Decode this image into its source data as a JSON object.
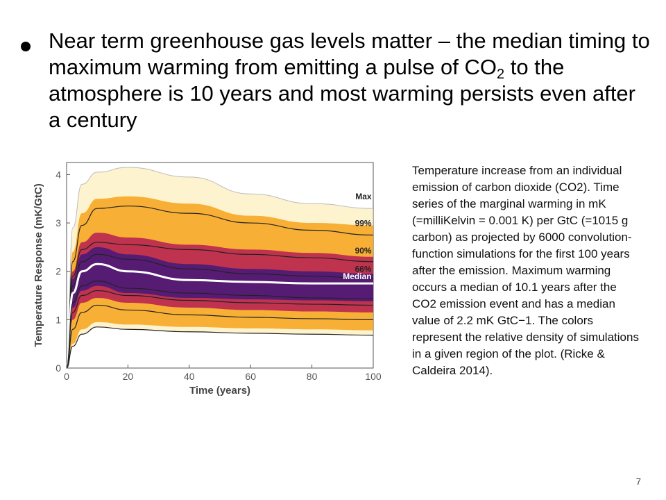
{
  "slide": {
    "bullet": {
      "part1": "Near term greenhouse gas levels matter – the median timing to maximum warming from emitting a pulse of CO",
      "subscript": "2",
      "part2": " to the atmosphere is 10 years and most warming persists even after a century"
    },
    "caption": "Temperature increase from an individual emission of carbon dioxide (CO2). Time series of the marginal warming in mK (=milliKelvin = 0.001 K) per GtC (=1015 g carbon) as projected by 6000 convolution-function simulations for the first 100 years after the emission. Maximum warming occurs a median of 10.1 years after the CO2 emission event and has a median value of 2.2 mK GtC−1. The colors represent the relative density of simulations in a given region of the plot. (Ricke & Caldeira 2014).",
    "page_number": "7"
  },
  "colors": {
    "density_low": "#fde9a8",
    "density_mid": "#f6a21a",
    "density_high": "#b51d52",
    "density_core": "#4a1a78",
    "median_line": "#ffffff",
    "percentile_line": "#222222"
  },
  "chart_data": {
    "type": "area",
    "xlabel": "Time (years)",
    "ylabel": "Temperature Response (mK/GtC)",
    "xlim": [
      0,
      100
    ],
    "ylim": [
      0,
      4.25
    ],
    "xticks": [
      0,
      20,
      40,
      60,
      80,
      100
    ],
    "yticks": [
      0,
      1,
      2,
      3,
      4
    ],
    "x": [
      0,
      2,
      5,
      10,
      20,
      40,
      60,
      80,
      100
    ],
    "series": [
      {
        "name": "Max",
        "values": [
          0,
          2.9,
          3.8,
          4.05,
          4.15,
          3.95,
          3.6,
          3.4,
          3.3
        ]
      },
      {
        "name": "99%",
        "values": [
          0,
          2.2,
          2.95,
          3.3,
          3.35,
          3.2,
          3.0,
          2.85,
          2.75
        ]
      },
      {
        "name": "90%",
        "values": [
          0,
          1.9,
          2.45,
          2.6,
          2.55,
          2.45,
          2.35,
          2.28,
          2.2
        ]
      },
      {
        "name": "66%",
        "values": [
          0,
          1.7,
          2.2,
          2.35,
          2.25,
          2.05,
          1.95,
          1.9,
          1.85
        ]
      },
      {
        "name": "Median",
        "values": [
          0,
          1.55,
          2.0,
          2.15,
          2.0,
          1.82,
          1.78,
          1.75,
          1.75
        ]
      },
      {
        "values": [
          0,
          1.35,
          1.7,
          1.8,
          1.65,
          1.55,
          1.5,
          1.45,
          1.43
        ]
      },
      {
        "values": [
          0,
          1.15,
          1.5,
          1.6,
          1.5,
          1.4,
          1.35,
          1.32,
          1.3
        ]
      },
      {
        "values": [
          0,
          0.8,
          1.15,
          1.3,
          1.2,
          1.1,
          1.05,
          1.02,
          1.0
        ]
      },
      {
        "values": [
          0,
          0.45,
          0.7,
          0.85,
          0.8,
          0.75,
          0.72,
          0.7,
          0.68
        ]
      }
    ],
    "band_outer": {
      "upper": [
        0,
        2.4,
        3.2,
        3.5,
        3.55,
        3.4,
        3.15,
        3.0,
        2.95
      ],
      "lower": [
        0,
        0.5,
        0.8,
        0.95,
        0.9,
        0.85,
        0.82,
        0.8,
        0.78
      ]
    },
    "band_mid": {
      "upper": [
        0,
        2.0,
        2.6,
        2.8,
        2.7,
        2.55,
        2.45,
        2.38,
        2.3
      ],
      "lower": [
        0,
        1.0,
        1.35,
        1.45,
        1.35,
        1.25,
        1.2,
        1.17,
        1.15
      ]
    },
    "band_inner": {
      "upper": [
        0,
        1.85,
        2.35,
        2.5,
        2.35,
        2.15,
        2.05,
        2.0,
        1.95
      ],
      "lower": [
        0,
        1.25,
        1.6,
        1.7,
        1.55,
        1.45,
        1.42,
        1.4,
        1.38
      ]
    },
    "grid": false
  }
}
